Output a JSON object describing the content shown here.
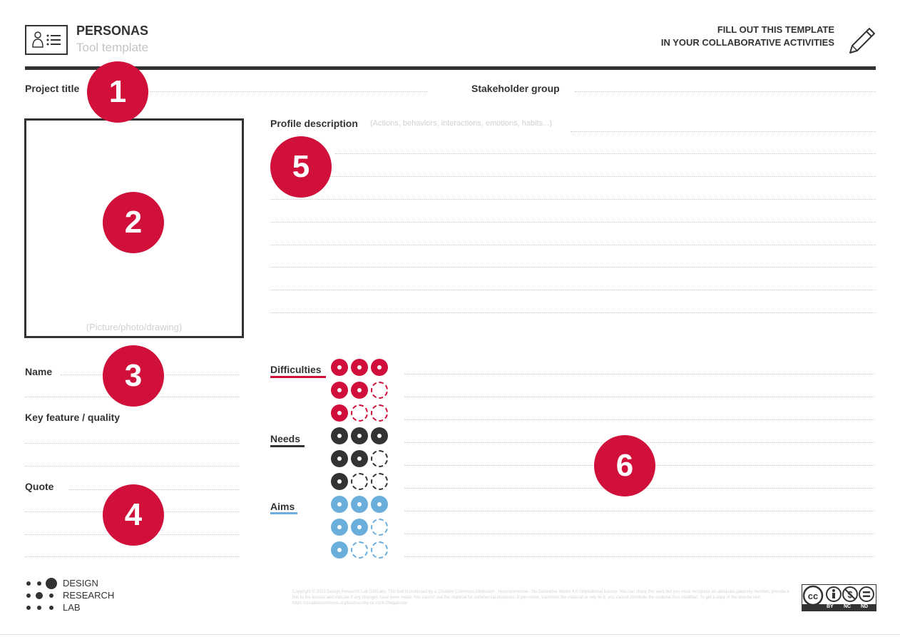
{
  "header": {
    "title": "PERSONAS",
    "subtitle": "Tool template",
    "cta_line1": "FILL OUT THIS TEMPLATE",
    "cta_line2": "IN YOUR COLLABORATIVE ACTIVITIES"
  },
  "fields": {
    "project_title": "Project title",
    "stakeholder_group": "Stakeholder group",
    "picture_hint": "(Picture/photo/drawing)",
    "name": "Name",
    "key_feature": "Key feature / quality",
    "quote": "Quote",
    "profile_description": "Profile description",
    "profile_hint": "(Actions, behaviors, interactions, emotions, habits...)"
  },
  "ratings": {
    "difficulties": "Difficulties",
    "needs": "Needs",
    "aims": "Aims",
    "colors": {
      "difficulties": "#d0103a",
      "needs": "#333333",
      "aims": "#6aaedc"
    },
    "levels": [
      3,
      2,
      1
    ]
  },
  "badges": [
    "1",
    "2",
    "3",
    "4",
    "5",
    "6"
  ],
  "footer": {
    "logo_line1": "DESIGN",
    "logo_line2": "RESEARCH",
    "logo_line3": "LAB",
    "cc_by": "BY",
    "cc_nc": "NC",
    "cc_nd": "ND",
    "legal": "Copyright © 2019 Design Research Lab (DRLab). This tool is protected by a Creative Commons Attribution - Noncommercial - No Derivative Works 4.0 International license. You can share this work but you must recognize an adequate paternity mention, provide a link to the license and indicate if any changes have been made. You cannot use the material for commercial purposes. If you remix, transform the material or rely on it, you cannot distribute the material thus modified. To get a copy of the license visit https://creativecommons.org/licenses/by-nc-nd/4.0/legalcode"
  },
  "icons": {
    "header": "persona-card-icon",
    "pencil": "pencil-icon",
    "cc": "creative-commons-icon"
  }
}
